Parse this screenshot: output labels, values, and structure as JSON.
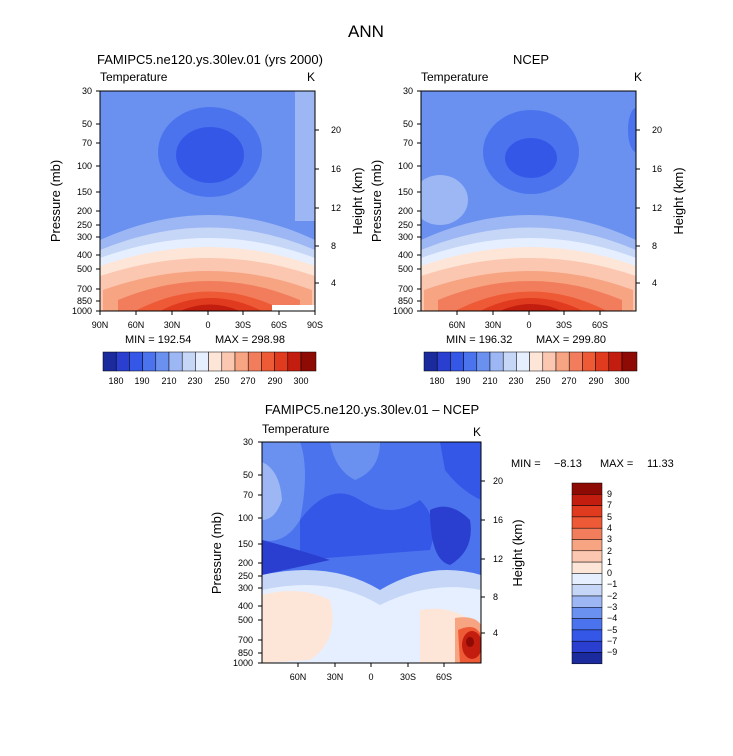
{
  "main_title": "ANN",
  "chart_data": [
    {
      "type": "heatmap",
      "title": "FAMIPC5.ne120.ys.30lev.01 (yrs 2000)",
      "left_label": "Temperature",
      "right_label": "K",
      "ylabel": "Pressure (mb)",
      "y2label": "Height (km)",
      "pressure_ticks": [
        "30",
        "50",
        "70",
        "100",
        "150",
        "200",
        "250",
        "300",
        "400",
        "500",
        "700",
        "850",
        "1000"
      ],
      "height_ticks": [
        "20",
        "16",
        "12",
        "8",
        "4"
      ],
      "x_ticks": [
        "90N",
        "60N",
        "30N",
        "0",
        "30S",
        "60S",
        "90S"
      ],
      "min_label": "MIN = 192.54",
      "max_label": "MAX = 298.98",
      "colorbar_labels": [
        "180",
        "190",
        "210",
        "230",
        "250",
        "270",
        "290",
        "300"
      ],
      "colors": [
        "#1b2a9c",
        "#2a3fcf",
        "#3557e8",
        "#4b73ee",
        "#6a91f0",
        "#9db7f4",
        "#c6d6f7",
        "#e6efff",
        "#fde6d8",
        "#fbc7b0",
        "#f6a482",
        "#f27d5c",
        "#ee5a36",
        "#e03b1f",
        "#c21d0e",
        "#8e0a05"
      ]
    },
    {
      "type": "heatmap",
      "title": "NCEP",
      "left_label": "Temperature",
      "right_label": "K",
      "ylabel": "Pressure (mb)",
      "y2label": "Height (km)",
      "pressure_ticks": [
        "30",
        "50",
        "70",
        "100",
        "150",
        "200",
        "250",
        "300",
        "400",
        "500",
        "700",
        "850",
        "1000"
      ],
      "height_ticks": [
        "20",
        "16",
        "12",
        "8",
        "4"
      ],
      "x_ticks": [
        "60N",
        "30N",
        "0",
        "30S",
        "60S"
      ],
      "min_label": "MIN = 196.32",
      "max_label": "MAX = 299.80",
      "colorbar_labels": [
        "180",
        "190",
        "210",
        "230",
        "250",
        "270",
        "290",
        "300"
      ]
    },
    {
      "type": "heatmap",
      "title": "FAMIPC5.ne120.ys.30lev.01 – NCEP",
      "left_label": "Temperature",
      "right_label": "K",
      "ylabel": "Pressure (mb)",
      "y2label": "Height (km)",
      "pressure_ticks": [
        "30",
        "50",
        "70",
        "100",
        "150",
        "200",
        "250",
        "300",
        "400",
        "500",
        "700",
        "850",
        "1000"
      ],
      "height_ticks": [
        "20",
        "16",
        "12",
        "8",
        "4"
      ],
      "x_ticks": [
        "60N",
        "30N",
        "0",
        "30S",
        "60S"
      ],
      "min_label": "MIN =",
      "min_value": "−8.13",
      "max_label": "MAX =",
      "max_value": "11.33",
      "colorbar_labels": [
        "9",
        "7",
        "5",
        "4",
        "3",
        "2",
        "1",
        "0",
        "−1",
        "−2",
        "−3",
        "−4",
        "−5",
        "−7",
        "−9"
      ],
      "colors": [
        "#8e0a05",
        "#c21d0e",
        "#e03b1f",
        "#ee5a36",
        "#f27d5c",
        "#f6a482",
        "#fbc7b0",
        "#fde6d8",
        "#e6efff",
        "#c6d6f7",
        "#9db7f4",
        "#6a91f0",
        "#4b73ee",
        "#3557e8",
        "#2a3fcf",
        "#1b2a9c"
      ]
    }
  ]
}
